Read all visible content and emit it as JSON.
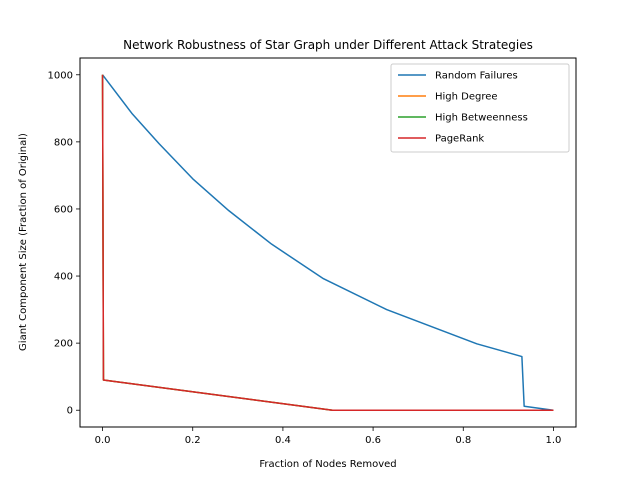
{
  "chart_data": {
    "type": "line",
    "title": "Network Robustness of Star Graph under Different Attack Strategies",
    "xlabel": "Fraction of Nodes Removed",
    "ylabel": "Giant Component Size (Fraction of Original)",
    "xlim": [
      -0.05,
      1.05
    ],
    "ylim": [
      -50,
      1050
    ],
    "xticks": [
      0.0,
      0.2,
      0.4,
      0.6,
      0.8,
      1.0
    ],
    "xtick_labels": [
      "0.0",
      "0.2",
      "0.4",
      "0.6",
      "0.8",
      "1.0"
    ],
    "yticks": [
      0,
      200,
      400,
      600,
      800,
      1000
    ],
    "ytick_labels": [
      "0",
      "200",
      "400",
      "600",
      "800",
      "1000"
    ],
    "grid": false,
    "legend_position": "top-right",
    "series": [
      {
        "name": "Random Failures",
        "color": "#1f77b4",
        "x": [
          0.0,
          0.065,
          0.125,
          0.2,
          0.28,
          0.375,
          0.49,
          0.63,
          0.83,
          0.93,
          0.935,
          1.0
        ],
        "y": [
          1000,
          885,
          795,
          690,
          595,
          495,
          392,
          300,
          198,
          160,
          12,
          0
        ]
      },
      {
        "name": "High Degree",
        "color": "#ff7f0e",
        "x": [
          0.0,
          0.002,
          0.51,
          1.0
        ],
        "y": [
          1000,
          90,
          0,
          0
        ]
      },
      {
        "name": "High Betweenness",
        "color": "#2ca02c",
        "x": [
          0.0,
          0.002,
          0.51,
          1.0
        ],
        "y": [
          1000,
          90,
          0,
          0
        ]
      },
      {
        "name": "PageRank",
        "color": "#d62728",
        "x": [
          0.0,
          0.002,
          0.51,
          1.0
        ],
        "y": [
          1000,
          90,
          0,
          0
        ]
      }
    ]
  }
}
